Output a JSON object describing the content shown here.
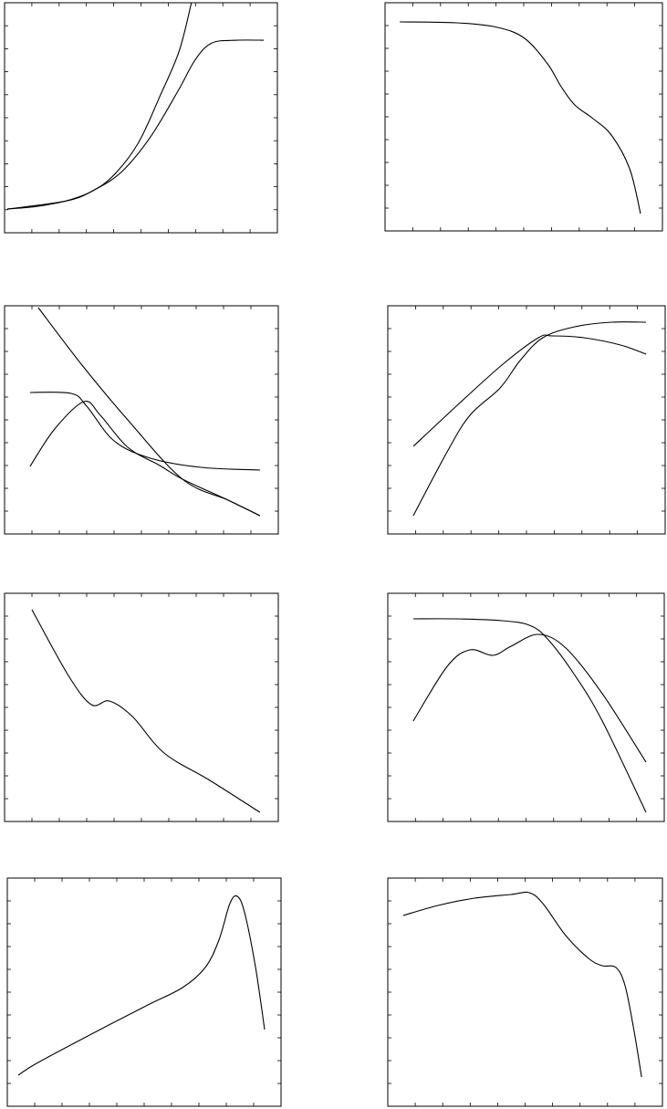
{
  "chart_data": [
    {
      "type": "line",
      "xlim": [
        0,
        10
      ],
      "ylim": [
        0,
        10
      ],
      "xticks": [
        0,
        1,
        2,
        3,
        4,
        5,
        6,
        7,
        8,
        9,
        10
      ],
      "yticks": [
        0,
        1,
        2,
        3,
        4,
        5,
        6,
        7,
        8,
        9,
        10
      ],
      "series": [
        {
          "color": "#000000",
          "x": [
            0.1,
            1.2,
            2.3,
            3.2,
            4.0,
            4.9,
            5.7,
            6.4,
            6.85
          ],
          "values": [
            1.03,
            1.15,
            1.4,
            1.8,
            2.5,
            3.9,
            5.95,
            7.9,
            10.0
          ]
        },
        {
          "color": "#000000",
          "x": [
            0.1,
            2.3,
            3.3,
            4.3,
            5.35,
            6.35,
            7.0,
            7.6,
            8.5,
            9.5
          ],
          "values": [
            1.03,
            1.39,
            1.87,
            2.66,
            4.17,
            6.15,
            7.54,
            8.25,
            8.37,
            8.37
          ]
        }
      ]
    },
    {
      "type": "line",
      "xlim": [
        0,
        10
      ],
      "ylim": [
        0,
        10
      ],
      "xticks": [
        0,
        1,
        2,
        3,
        4,
        5,
        6,
        7,
        8,
        9,
        10
      ],
      "yticks": [
        0,
        1,
        2,
        3,
        4,
        5,
        6,
        7,
        8,
        9,
        10
      ],
      "series": [
        {
          "color": "#000000",
          "x": [
            0.53,
            2.57,
            4.05,
            5.03,
            5.86,
            6.35,
            6.84,
            7.5,
            8.16,
            8.82,
            9.21
          ],
          "values": [
            9.16,
            9.12,
            8.92,
            8.44,
            7.32,
            6.32,
            5.52,
            4.92,
            4.2,
            2.72,
            0.76
          ]
        }
      ]
    },
    {
      "type": "line",
      "xlim": [
        0,
        10
      ],
      "ylim": [
        0,
        10
      ],
      "xticks": [
        0,
        1,
        2,
        3,
        4,
        5,
        6,
        7,
        8,
        9,
        10
      ],
      "yticks": [
        0,
        1,
        2,
        3,
        4,
        5,
        6,
        7,
        8,
        9,
        10
      ],
      "series": [
        {
          "color": "#000000",
          "x": [
            1.23,
            2.83,
            4.5,
            6.5,
            8.17,
            9.33
          ],
          "values": [
            9.92,
            7.4,
            5.0,
            2.4,
            1.48,
            0.8
          ]
        },
        {
          "color": "#000000",
          "x": [
            0.93,
            2.43,
            3.0,
            4.0,
            5.33,
            7.17,
            9.33
          ],
          "values": [
            6.2,
            6.16,
            5.6,
            4.08,
            3.32,
            2.92,
            2.8
          ]
        },
        {
          "color": "#000000",
          "x": [
            0.93,
            1.83,
            2.9,
            3.5,
            4.5,
            5.67,
            6.5,
            8.17,
            9.33
          ],
          "values": [
            2.96,
            4.6,
            5.8,
            5.2,
            3.8,
            3.0,
            2.4,
            1.48,
            0.8
          ]
        }
      ]
    },
    {
      "type": "line",
      "xlim": [
        0,
        10
      ],
      "ylim": [
        0,
        10
      ],
      "xticks": [
        0,
        1,
        2,
        3,
        4,
        5,
        6,
        7,
        8,
        9,
        10
      ],
      "yticks": [
        0,
        1,
        2,
        3,
        4,
        5,
        6,
        7,
        8,
        9,
        10
      ],
      "series": [
        {
          "color": "#000000",
          "x": [
            0.92,
            2.47,
            4.11,
            5.43,
            5.92,
            7.07,
            8.39,
            9.31
          ],
          "values": [
            3.84,
            5.6,
            7.4,
            8.6,
            8.68,
            8.6,
            8.28,
            7.88
          ]
        },
        {
          "color": "#000000",
          "x": [
            0.92,
            2.14,
            2.96,
            4.05,
            4.77,
            5.59,
            6.74,
            8.06,
            9.31
          ],
          "values": [
            0.8,
            3.6,
            5.2,
            6.4,
            7.6,
            8.6,
            9.08,
            9.28,
            9.28
          ]
        }
      ]
    },
    {
      "type": "line",
      "xlim": [
        0,
        10
      ],
      "ylim": [
        0,
        10
      ],
      "xticks": [
        0,
        1,
        2,
        3,
        4,
        5,
        6,
        7,
        8,
        9,
        10
      ],
      "yticks": [
        0,
        1,
        2,
        3,
        4,
        5,
        6,
        7,
        8,
        9,
        10
      ],
      "series": [
        {
          "color": "#000000",
          "x": [
            1.0,
            2.33,
            3.17,
            3.83,
            4.67,
            5.83,
            7.5,
            9.33
          ],
          "values": [
            9.28,
            6.4,
            5.12,
            5.28,
            4.6,
            3.0,
            1.8,
            0.4
          ]
        }
      ]
    },
    {
      "type": "line",
      "xlim": [
        0,
        10
      ],
      "ylim": [
        0,
        10
      ],
      "xticks": [
        0,
        1,
        2,
        3,
        4,
        5,
        6,
        7,
        8,
        9,
        10
      ],
      "yticks": [
        0,
        1,
        2,
        3,
        4,
        5,
        6,
        7,
        8,
        9,
        10
      ],
      "series": [
        {
          "color": "#000000",
          "x": [
            0.92,
            2.48,
            4.13,
            5.12,
            5.78,
            6.77,
            7.76,
            9.34
          ],
          "values": [
            8.88,
            8.88,
            8.8,
            8.6,
            8.0,
            6.4,
            4.4,
            0.4
          ]
        },
        {
          "color": "#000000",
          "x": [
            0.92,
            2.15,
            2.97,
            3.8,
            4.46,
            5.45,
            6.44,
            7.76,
            9.34
          ],
          "values": [
            4.4,
            6.8,
            7.52,
            7.28,
            7.68,
            8.2,
            7.6,
            5.6,
            2.6
          ]
        }
      ]
    },
    {
      "type": "line",
      "xlim": [
        0,
        10
      ],
      "ylim": [
        0,
        10
      ],
      "xticks": [
        0,
        1,
        2,
        3,
        4,
        5,
        6,
        7,
        8,
        9,
        10
      ],
      "yticks": [
        0,
        1,
        2,
        3,
        4,
        5,
        6,
        7,
        8,
        9,
        10
      ],
      "series": [
        {
          "color": "#000000",
          "x": [
            0.4,
            1.07,
            3.07,
            5.07,
            6.4,
            7.23,
            7.73,
            8.13,
            8.4,
            8.67,
            9.07,
            9.4
          ],
          "values": [
            1.36,
            1.88,
            3.16,
            4.4,
            5.2,
            6.08,
            7.28,
            8.88,
            9.2,
            8.48,
            6.08,
            3.36
          ]
        }
      ]
    },
    {
      "type": "line",
      "xlim": [
        0,
        10
      ],
      "ylim": [
        0,
        10
      ],
      "xticks": [
        0,
        1,
        2,
        3,
        4,
        5,
        6,
        7,
        8,
        9,
        10
      ],
      "yticks": [
        0,
        1,
        2,
        3,
        4,
        5,
        6,
        7,
        8,
        9,
        10
      ],
      "series": [
        {
          "color": "#000000",
          "x": [
            0.56,
            1.83,
            3.16,
            4.49,
            5.15,
            5.65,
            6.48,
            7.31,
            7.81,
            8.31,
            8.64,
            8.97,
            9.24
          ],
          "values": [
            8.36,
            8.8,
            9.12,
            9.28,
            9.36,
            8.88,
            7.48,
            6.48,
            6.16,
            6.08,
            5.28,
            3.28,
            1.28
          ]
        }
      ]
    }
  ]
}
